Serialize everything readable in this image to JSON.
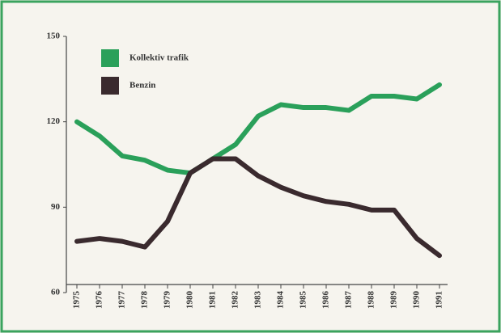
{
  "chart_data": {
    "type": "line",
    "categories": [
      "1975",
      "1976",
      "1977",
      "1978",
      "1979",
      "1980",
      "1981",
      "1982",
      "1983",
      "1984",
      "1985",
      "1986",
      "1987",
      "1988",
      "1989",
      "1990",
      "1991"
    ],
    "series": [
      {
        "name": "Kollektiv trafik",
        "color": "#2aa05a",
        "values": [
          120,
          115,
          108,
          106.5,
          103,
          102,
          107,
          112,
          122,
          126,
          125,
          125,
          124,
          129,
          129,
          128,
          133
        ]
      },
      {
        "name": "Benzin",
        "color": "#3a2a2e",
        "values": [
          78,
          79,
          78,
          76,
          85,
          102,
          107,
          107,
          101,
          97,
          94,
          92,
          91,
          89,
          89,
          79,
          73
        ]
      }
    ],
    "ylim": [
      60,
      150
    ],
    "yticks": [
      60,
      90,
      120,
      150
    ],
    "legend": "upper left"
  }
}
